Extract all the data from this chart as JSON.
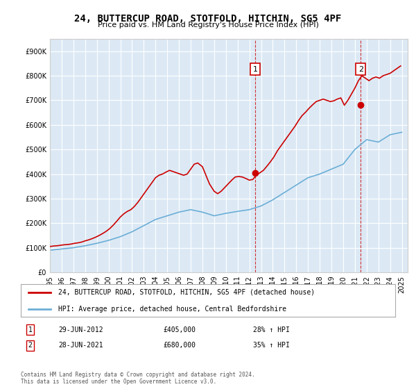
{
  "title": "24, BUTTERCUP ROAD, STOTFOLD, HITCHIN, SG5 4PF",
  "subtitle": "Price paid vs. HM Land Registry's House Price Index (HPI)",
  "ylabel": "",
  "background_color": "#dce9f5",
  "plot_bg_color": "#dce9f5",
  "legend_label_red": "24, BUTTERCUP ROAD, STOTFOLD, HITCHIN, SG5 4PF (detached house)",
  "legend_label_blue": "HPI: Average price, detached house, Central Bedfordshire",
  "annotation1_label": "1",
  "annotation1_date": "29-JUN-2012",
  "annotation1_price": "£405,000",
  "annotation1_hpi": "28% ↑ HPI",
  "annotation2_label": "2",
  "annotation2_date": "28-JUN-2021",
  "annotation2_price": "£680,000",
  "annotation2_hpi": "35% ↑ HPI",
  "footer": "Contains HM Land Registry data © Crown copyright and database right 2024.\nThis data is licensed under the Open Government Licence v3.0.",
  "sale1_year": 2012.5,
  "sale1_value": 405000,
  "sale2_year": 2021.5,
  "sale2_value": 680000,
  "ylim_min": 0,
  "ylim_max": 950000,
  "xlim_min": 1995,
  "xlim_max": 2025.5,
  "hpi_years": [
    1995,
    1996,
    1997,
    1998,
    1999,
    2000,
    2001,
    2002,
    2003,
    2004,
    2005,
    2006,
    2007,
    2008,
    2009,
    2010,
    2011,
    2012,
    2013,
    2014,
    2015,
    2016,
    2017,
    2018,
    2019,
    2020,
    2021,
    2022,
    2023,
    2024,
    2025
  ],
  "hpi_values": [
    90000,
    95000,
    100000,
    108000,
    118000,
    130000,
    145000,
    165000,
    190000,
    215000,
    230000,
    245000,
    255000,
    245000,
    230000,
    240000,
    248000,
    255000,
    270000,
    295000,
    325000,
    355000,
    385000,
    400000,
    420000,
    440000,
    500000,
    540000,
    530000,
    560000,
    570000
  ],
  "price_years": [
    1995.0,
    1995.3,
    1995.6,
    1995.9,
    1996.2,
    1996.5,
    1996.8,
    1997.1,
    1997.4,
    1997.7,
    1998.0,
    1998.3,
    1998.6,
    1998.9,
    1999.2,
    1999.5,
    1999.8,
    2000.1,
    2000.4,
    2000.7,
    2001.0,
    2001.3,
    2001.6,
    2001.9,
    2002.2,
    2002.5,
    2002.8,
    2003.1,
    2003.4,
    2003.7,
    2004.0,
    2004.3,
    2004.6,
    2004.9,
    2005.2,
    2005.5,
    2005.8,
    2006.1,
    2006.4,
    2006.7,
    2007.0,
    2007.3,
    2007.6,
    2008.0,
    2008.3,
    2008.6,
    2009.0,
    2009.3,
    2009.6,
    2009.9,
    2010.2,
    2010.5,
    2010.8,
    2011.1,
    2011.4,
    2011.7,
    2012.0,
    2012.3,
    2012.6,
    2012.9,
    2013.2,
    2013.5,
    2013.8,
    2014.1,
    2014.4,
    2014.7,
    2015.0,
    2015.3,
    2015.6,
    2015.9,
    2016.2,
    2016.5,
    2016.8,
    2017.1,
    2017.4,
    2017.7,
    2018.0,
    2018.3,
    2018.6,
    2018.9,
    2019.2,
    2019.5,
    2019.8,
    2020.1,
    2020.4,
    2020.7,
    2021.0,
    2021.3,
    2021.6,
    2021.9,
    2022.2,
    2022.5,
    2022.8,
    2023.1,
    2023.4,
    2023.7,
    2024.0,
    2024.3,
    2024.6,
    2024.9
  ],
  "price_values": [
    105000,
    107000,
    108000,
    110000,
    112000,
    113000,
    115000,
    118000,
    120000,
    123000,
    128000,
    132000,
    137000,
    143000,
    150000,
    158000,
    167000,
    178000,
    192000,
    208000,
    225000,
    238000,
    248000,
    255000,
    268000,
    285000,
    305000,
    325000,
    345000,
    365000,
    385000,
    395000,
    400000,
    408000,
    415000,
    410000,
    405000,
    400000,
    395000,
    400000,
    420000,
    440000,
    445000,
    430000,
    395000,
    360000,
    330000,
    320000,
    330000,
    345000,
    360000,
    375000,
    388000,
    390000,
    388000,
    382000,
    375000,
    378000,
    395000,
    405000,
    415000,
    432000,
    450000,
    470000,
    495000,
    515000,
    535000,
    555000,
    575000,
    595000,
    618000,
    638000,
    652000,
    668000,
    682000,
    695000,
    700000,
    705000,
    700000,
    695000,
    698000,
    705000,
    710000,
    680000,
    700000,
    725000,
    750000,
    780000,
    800000,
    790000,
    780000,
    790000,
    795000,
    790000,
    800000,
    805000,
    810000,
    820000,
    830000,
    840000
  ]
}
